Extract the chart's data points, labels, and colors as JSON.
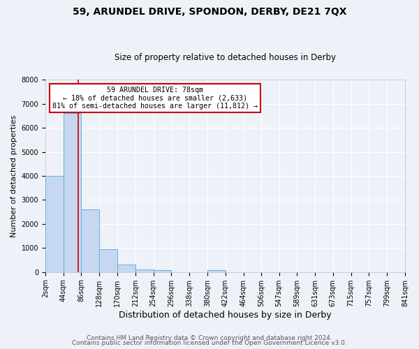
{
  "title1": "59, ARUNDEL DRIVE, SPONDON, DERBY, DE21 7QX",
  "title2": "Size of property relative to detached houses in Derby",
  "xlabel": "Distribution of detached houses by size in Derby",
  "ylabel": "Number of detached properties",
  "bin_edges": [
    2,
    44,
    86,
    128,
    170,
    212,
    254,
    296,
    338,
    380,
    422,
    464,
    506,
    547,
    589,
    631,
    673,
    715,
    757,
    799,
    841
  ],
  "bar_heights": [
    4000,
    6600,
    2600,
    950,
    320,
    120,
    90,
    0,
    0,
    70,
    0,
    0,
    0,
    0,
    0,
    0,
    0,
    0,
    0,
    0
  ],
  "bar_color": "#c5d8f0",
  "bar_edgecolor": "#6aaee0",
  "bar_linewidth": 0.7,
  "property_size": 78,
  "vline_color": "#cc0000",
  "annotation_line1": "59 ARUNDEL DRIVE: 78sqm",
  "annotation_line2": "← 18% of detached houses are smaller (2,633)",
  "annotation_line3": "81% of semi-detached houses are larger (11,812) →",
  "annotation_box_color": "#cc0000",
  "ylim": [
    0,
    8000
  ],
  "yticks": [
    0,
    1000,
    2000,
    3000,
    4000,
    5000,
    6000,
    7000,
    8000
  ],
  "xtick_labels": [
    "2sqm",
    "44sqm",
    "86sqm",
    "128sqm",
    "170sqm",
    "212sqm",
    "254sqm",
    "296sqm",
    "338sqm",
    "380sqm",
    "422sqm",
    "464sqm",
    "506sqm",
    "547sqm",
    "589sqm",
    "631sqm",
    "673sqm",
    "715sqm",
    "757sqm",
    "799sqm",
    "841sqm"
  ],
  "footer1": "Contains HM Land Registry data © Crown copyright and database right 2024.",
  "footer2": "Contains public sector information licensed under the Open Government Licence v3.0.",
  "bg_color": "#eef2f8",
  "grid_color": "#ffffff",
  "title1_fontsize": 10,
  "title2_fontsize": 8.5,
  "xlabel_fontsize": 9,
  "ylabel_fontsize": 8,
  "tick_fontsize": 7,
  "footer_fontsize": 6.5
}
